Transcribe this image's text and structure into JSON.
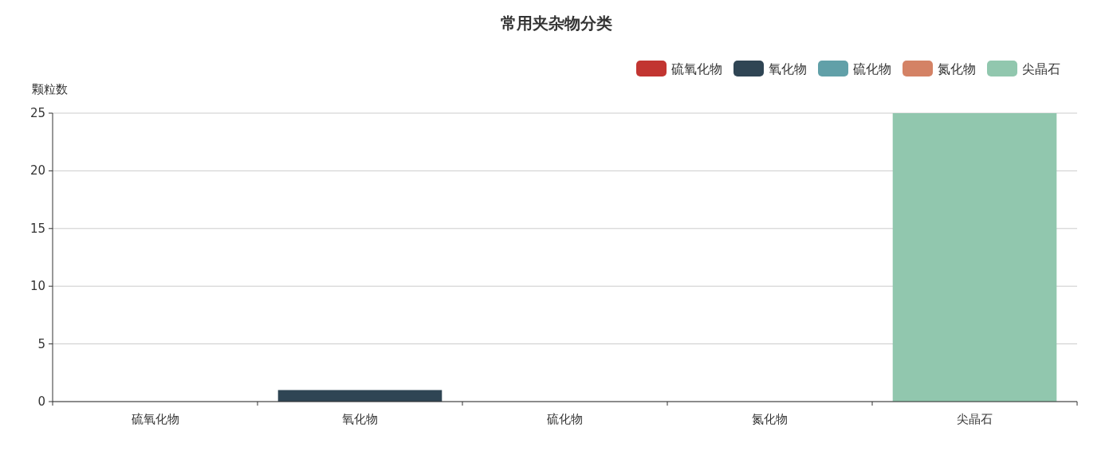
{
  "chart_data": {
    "type": "bar",
    "title": "常用夹杂物分类",
    "ylabel": "颗粒数",
    "categories": [
      "硫氧化物",
      "氧化物",
      "硫化物",
      "氮化物",
      "尖晶石"
    ],
    "series": [
      {
        "name": "硫氧化物",
        "color": "#c23531",
        "values": [
          0,
          null,
          null,
          null,
          null
        ]
      },
      {
        "name": "氧化物",
        "color": "#2f4554",
        "values": [
          null,
          1,
          null,
          null,
          null
        ]
      },
      {
        "name": "硫化物",
        "color": "#61a0a8",
        "values": [
          null,
          null,
          0,
          null,
          null
        ]
      },
      {
        "name": "氮化物",
        "color": "#d48265",
        "values": [
          null,
          null,
          null,
          0,
          null
        ]
      },
      {
        "name": "尖晶石",
        "color": "#91c7ae",
        "values": [
          null,
          null,
          null,
          null,
          25
        ]
      }
    ],
    "ylim": [
      0,
      25
    ],
    "yticks": [
      0,
      5,
      10,
      15,
      20,
      25
    ],
    "grid": "y",
    "legend": "top right"
  }
}
